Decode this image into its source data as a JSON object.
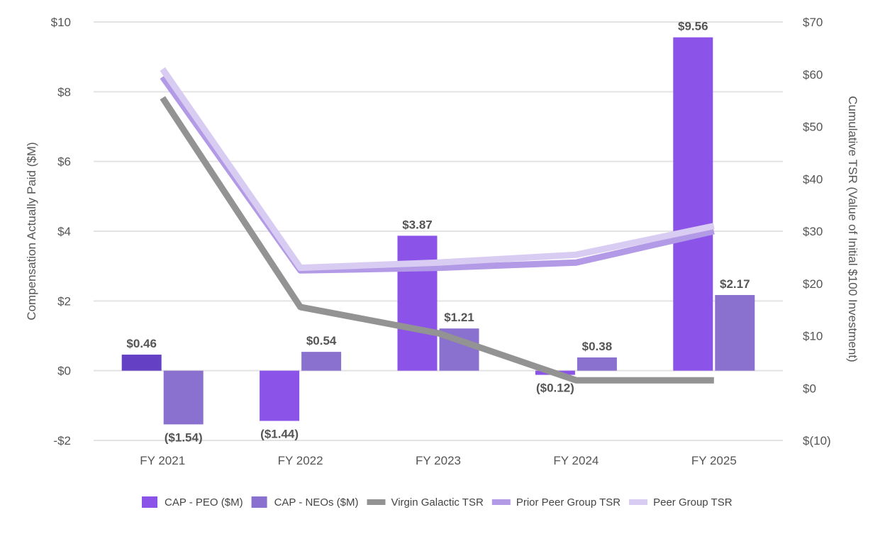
{
  "chart_data": {
    "type": "bar",
    "categories": [
      "FY 2021",
      "FY 2022",
      "FY 2023",
      "FY 2024",
      "FY 2025"
    ],
    "series": [
      {
        "name": "CAP - PEO ($M)",
        "kind": "bar",
        "axis": "left",
        "color": "#8b53e8",
        "point_colors": [
          "#6440c4",
          "#8b53e8",
          "#8b53e8",
          "#8b53e8",
          "#8b53e8"
        ],
        "values": [
          0.46,
          -1.44,
          3.87,
          -0.12,
          9.56
        ],
        "labels": [
          "$0.46",
          "($1.44)",
          "$3.87",
          "($0.12)",
          "$9.56"
        ]
      },
      {
        "name": "CAP - NEOs ($M)",
        "kind": "bar",
        "axis": "left",
        "color": "#8a70cf",
        "values": [
          -1.54,
          0.54,
          1.21,
          0.38,
          2.17
        ],
        "labels": [
          "($1.54)",
          "$0.54",
          "$1.21",
          "$0.38",
          "$2.17"
        ]
      },
      {
        "name": "Virgin Galactic TSR",
        "kind": "line",
        "axis": "right",
        "color": "#939393",
        "values": [
          55.5,
          15.5,
          10.5,
          1.5,
          1.5
        ]
      },
      {
        "name": "Prior Peer Group TSR",
        "kind": "line",
        "axis": "right",
        "color": "#b39ae6",
        "values": [
          59.5,
          22.5,
          23.0,
          24.0,
          30.0
        ]
      },
      {
        "name": "Peer Group TSR",
        "kind": "line",
        "axis": "right",
        "color": "#d9ccf2",
        "values": [
          61.0,
          23.0,
          24.0,
          25.5,
          31.0
        ]
      }
    ],
    "y_left": {
      "label": "Compensation Actually Paid ($M)",
      "range": [
        -2,
        10
      ],
      "ticks": [
        -2,
        0,
        2,
        4,
        6,
        8,
        10
      ],
      "tick_labels": [
        "-$2",
        "$0",
        "$2",
        "$4",
        "$6",
        "$8",
        "$10"
      ]
    },
    "y_right": {
      "label": "Cumulative TSR (Value of Initial $100 Investment)",
      "range": [
        -10,
        70
      ],
      "ticks": [
        -10,
        0,
        10,
        20,
        30,
        40,
        50,
        60,
        70
      ],
      "tick_labels": [
        "$(10)",
        "$0",
        "$10",
        "$20",
        "$30",
        "$40",
        "$50",
        "$60",
        "$70"
      ]
    },
    "grid": true,
    "legend_position": "bottom-center",
    "legend": [
      {
        "label": "CAP - PEO ($M)",
        "color": "#8b53e8",
        "shape": "square"
      },
      {
        "label": "CAP - NEOs ($M)",
        "color": "#8a70cf",
        "shape": "square"
      },
      {
        "label": "Virgin Galactic TSR",
        "color": "#939393",
        "shape": "line"
      },
      {
        "label": "Prior Peer Group TSR",
        "color": "#b39ae6",
        "shape": "line"
      },
      {
        "label": "Peer Group TSR",
        "color": "#d9ccf2",
        "shape": "line"
      }
    ]
  }
}
